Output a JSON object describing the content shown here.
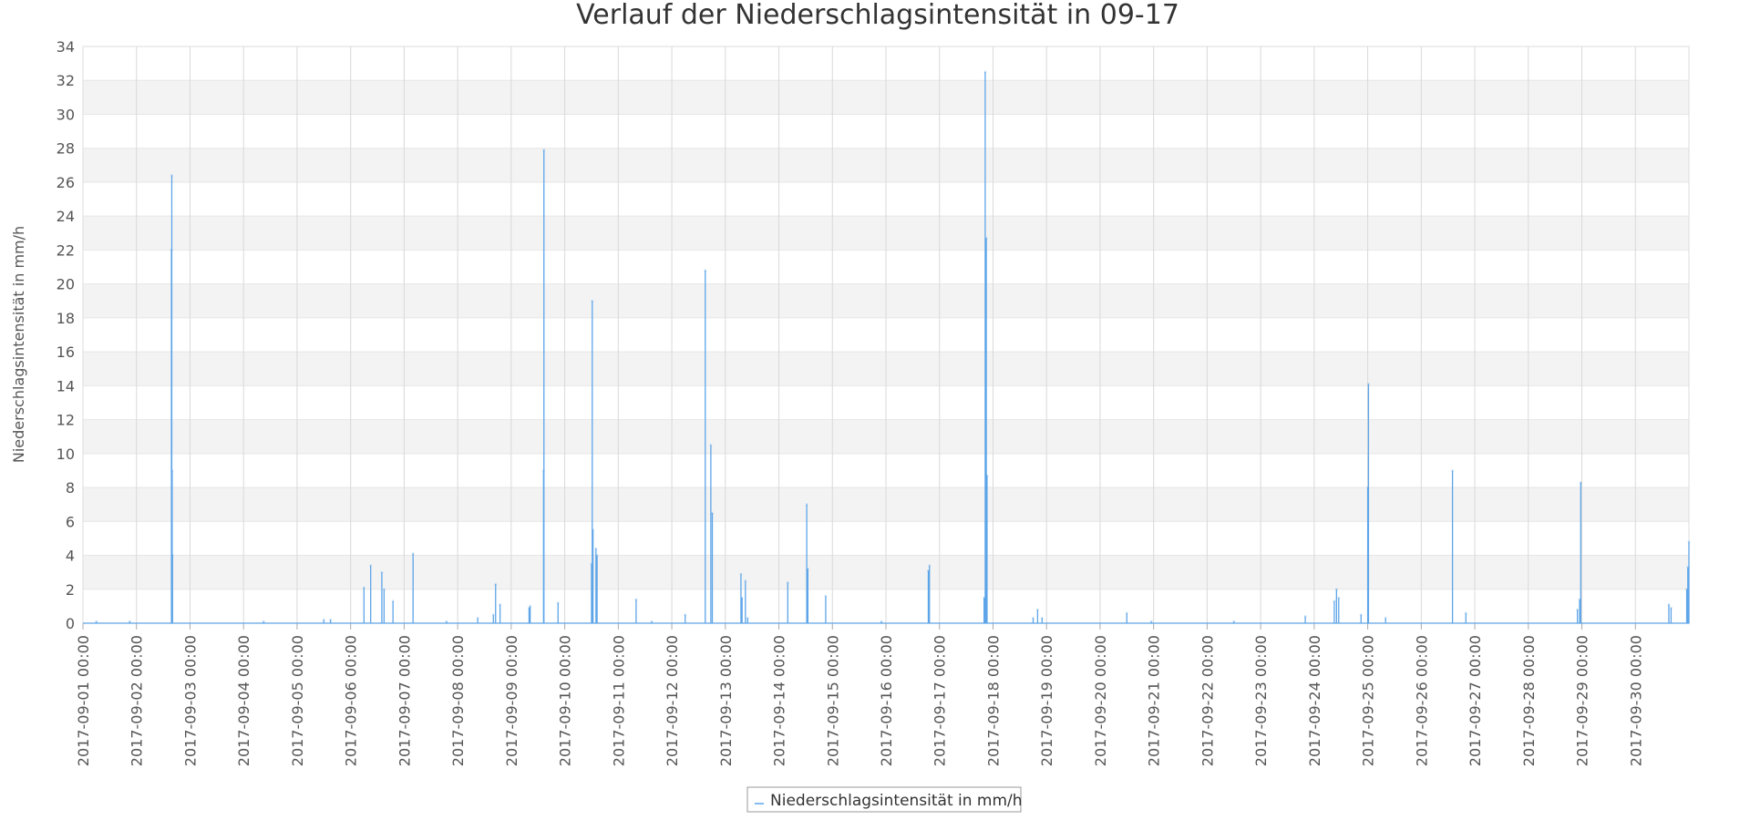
{
  "chart_data": {
    "type": "line",
    "title": "Verlauf der Niederschlagsintensität in 09-17",
    "xlabel": "",
    "ylabel": "Niederschlagsintensität in mm/h",
    "ylim": [
      0,
      34
    ],
    "yticks": [
      0,
      2,
      4,
      6,
      8,
      10,
      12,
      14,
      16,
      18,
      20,
      22,
      24,
      26,
      28,
      30,
      32,
      34
    ],
    "xlim_days": [
      0,
      30
    ],
    "x_tick_labels": [
      "2017-09-01 00:00",
      "2017-09-02 00:00",
      "2017-09-03 00:00",
      "2017-09-04 00:00",
      "2017-09-05 00:00",
      "2017-09-06 00:00",
      "2017-09-07 00:00",
      "2017-09-08 00:00",
      "2017-09-09 00:00",
      "2017-09-10 00:00",
      "2017-09-11 00:00",
      "2017-09-12 00:00",
      "2017-09-13 00:00",
      "2017-09-14 00:00",
      "2017-09-15 00:00",
      "2017-09-16 00:00",
      "2017-09-17 00:00",
      "2017-09-18 00:00",
      "2017-09-19 00:00",
      "2017-09-20 00:00",
      "2017-09-21 00:00",
      "2017-09-22 00:00",
      "2017-09-23 00:00",
      "2017-09-24 00:00",
      "2017-09-25 00:00",
      "2017-09-26 00:00",
      "2017-09-27 00:00",
      "2017-09-28 00:00",
      "2017-09-29 00:00",
      "2017-09-30 00:00"
    ],
    "grid": true,
    "alternating_bands": true,
    "legend_position": "bottom-center",
    "series": [
      {
        "name": "Niederschlagsintensität in mm/h",
        "color": "#5da5e8",
        "points": [
          {
            "x": "2017-09-01 06:00",
            "y": 0.1
          },
          {
            "x": "2017-09-01 21:00",
            "y": 0.1
          },
          {
            "x": "2017-09-02 15:40",
            "y": 22.0
          },
          {
            "x": "2017-09-02 15:50",
            "y": 26.4
          },
          {
            "x": "2017-09-02 16:00",
            "y": 9.0
          },
          {
            "x": "2017-09-02 16:10",
            "y": 4.0
          },
          {
            "x": "2017-09-04 09:00",
            "y": 0.1
          },
          {
            "x": "2017-09-05 12:00",
            "y": 0.2
          },
          {
            "x": "2017-09-05 15:00",
            "y": 0.2
          },
          {
            "x": "2017-09-06 06:00",
            "y": 2.1
          },
          {
            "x": "2017-09-06 09:00",
            "y": 3.4
          },
          {
            "x": "2017-09-06 14:00",
            "y": 3.0
          },
          {
            "x": "2017-09-06 15:00",
            "y": 2.0
          },
          {
            "x": "2017-09-06 19:00",
            "y": 1.3
          },
          {
            "x": "2017-09-07 04:00",
            "y": 4.1
          },
          {
            "x": "2017-09-07 19:00",
            "y": 0.1
          },
          {
            "x": "2017-09-08 09:00",
            "y": 0.3
          },
          {
            "x": "2017-09-08 16:00",
            "y": 0.5
          },
          {
            "x": "2017-09-08 17:00",
            "y": 2.3
          },
          {
            "x": "2017-09-08 19:00",
            "y": 1.1
          },
          {
            "x": "2017-09-09 08:00",
            "y": 0.9
          },
          {
            "x": "2017-09-09 08:30",
            "y": 1.0
          },
          {
            "x": "2017-09-09 14:30",
            "y": 9.0
          },
          {
            "x": "2017-09-09 14:40",
            "y": 27.9
          },
          {
            "x": "2017-09-09 21:00",
            "y": 1.2
          },
          {
            "x": "2017-09-10 12:00",
            "y": 3.5
          },
          {
            "x": "2017-09-10 12:20",
            "y": 19.0
          },
          {
            "x": "2017-09-10 12:40",
            "y": 5.5
          },
          {
            "x": "2017-09-10 14:00",
            "y": 4.4
          },
          {
            "x": "2017-09-10 14:30",
            "y": 4.0
          },
          {
            "x": "2017-09-11 08:00",
            "y": 1.4
          },
          {
            "x": "2017-09-11 15:00",
            "y": 0.1
          },
          {
            "x": "2017-09-12 06:00",
            "y": 0.5
          },
          {
            "x": "2017-09-12 15:00",
            "y": 20.8
          },
          {
            "x": "2017-09-12 17:30",
            "y": 10.5
          },
          {
            "x": "2017-09-12 18:10",
            "y": 6.5
          },
          {
            "x": "2017-09-13 07:00",
            "y": 2.9
          },
          {
            "x": "2017-09-13 07:30",
            "y": 1.5
          },
          {
            "x": "2017-09-13 09:00",
            "y": 2.5
          },
          {
            "x": "2017-09-13 10:00",
            "y": 0.3
          },
          {
            "x": "2017-09-14 04:00",
            "y": 2.4
          },
          {
            "x": "2017-09-14 12:30",
            "y": 7.0
          },
          {
            "x": "2017-09-14 13:00",
            "y": 3.2
          },
          {
            "x": "2017-09-14 21:00",
            "y": 1.6
          },
          {
            "x": "2017-09-15 22:00",
            "y": 0.1
          },
          {
            "x": "2017-09-16 19:00",
            "y": 3.1
          },
          {
            "x": "2017-09-16 19:30",
            "y": 3.4
          },
          {
            "x": "2017-09-17 20:00",
            "y": 1.5
          },
          {
            "x": "2017-09-17 20:30",
            "y": 32.5
          },
          {
            "x": "2017-09-17 21:00",
            "y": 22.7
          },
          {
            "x": "2017-09-17 21:20",
            "y": 8.7
          },
          {
            "x": "2017-09-18 18:00",
            "y": 0.3
          },
          {
            "x": "2017-09-18 20:00",
            "y": 0.8
          },
          {
            "x": "2017-09-18 22:00",
            "y": 0.3
          },
          {
            "x": "2017-09-20 12:00",
            "y": 0.6
          },
          {
            "x": "2017-09-20 23:00",
            "y": 0.1
          },
          {
            "x": "2017-09-22 12:00",
            "y": 0.1
          },
          {
            "x": "2017-09-23 20:00",
            "y": 0.4
          },
          {
            "x": "2017-09-24 09:00",
            "y": 1.3
          },
          {
            "x": "2017-09-24 10:00",
            "y": 2.0
          },
          {
            "x": "2017-09-24 11:00",
            "y": 1.5
          },
          {
            "x": "2017-09-24 21:00",
            "y": 0.5
          },
          {
            "x": "2017-09-25 00:00",
            "y": 8.0
          },
          {
            "x": "2017-09-25 00:20",
            "y": 14.1
          },
          {
            "x": "2017-09-25 08:00",
            "y": 0.3
          },
          {
            "x": "2017-09-26 14:00",
            "y": 9.0
          },
          {
            "x": "2017-09-26 20:00",
            "y": 0.6
          },
          {
            "x": "2017-09-28 22:00",
            "y": 0.8
          },
          {
            "x": "2017-09-28 23:00",
            "y": 1.4
          },
          {
            "x": "2017-09-28 23:30",
            "y": 8.3
          },
          {
            "x": "2017-09-30 15:00",
            "y": 1.1
          },
          {
            "x": "2017-09-30 16:00",
            "y": 0.9
          },
          {
            "x": "2017-09-30 23:00",
            "y": 2.0
          },
          {
            "x": "2017-09-30 23:30",
            "y": 3.3
          },
          {
            "x": "2017-10-01 00:00",
            "y": 4.8
          }
        ]
      }
    ]
  }
}
